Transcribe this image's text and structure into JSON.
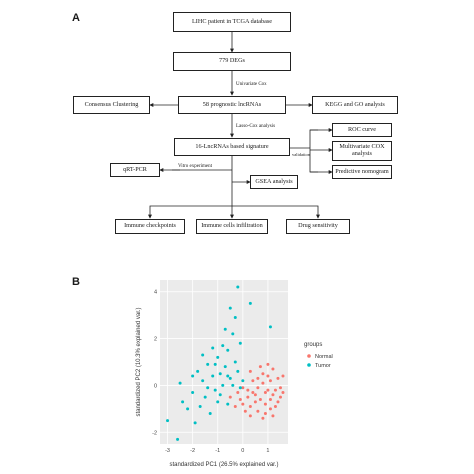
{
  "panels": {
    "a": "A",
    "b": "B"
  },
  "flowchart": {
    "boxes": {
      "lihc": "LIHC patient in TCGA database",
      "degs": "779 DEGs",
      "prognostic": "58 prognostic lncRNAs",
      "consensus": "Consensus Clustering",
      "kegg": "KEGG and GO analysis",
      "signature": "16-LncRNAs based signature",
      "roc": "ROC curve",
      "multivariate": "Multivariate COX analysis",
      "nomogram": "Predictive nomogram",
      "qrtpcr": "qRT-PCR",
      "gsea": "GSEA analysis",
      "immune_checkpoints": "Immune checkpoints",
      "immune_infiltration": "Immune cells infiltration",
      "drug": "Drug sensitivity"
    },
    "edge_labels": {
      "univariate": "Univariate Cox",
      "lasso": "Lasso-Cox analysis",
      "validation": "validation",
      "vitro": "Vitro experiment"
    }
  },
  "chart_data": {
    "type": "scatter",
    "xlabel": "standardized PC1 (26.5% explained var.)",
    "ylabel": "standardized PC2 (10.3% explained var.)",
    "xlim": [
      -3.3,
      1.8
    ],
    "ylim": [
      -2.5,
      4.5
    ],
    "x_ticks": [
      -3,
      -2,
      -1,
      0,
      1
    ],
    "y_ticks": [
      -2,
      0,
      2,
      4
    ],
    "grid": true,
    "legend_title": "groups",
    "legend_position": "right",
    "series": [
      {
        "name": "Normal",
        "color": "#f8766d",
        "points": [
          [
            0.2,
            -0.5
          ],
          [
            0.4,
            -0.3
          ],
          [
            0.6,
            -0.1
          ],
          [
            0.8,
            0.1
          ],
          [
            1.0,
            -0.2
          ],
          [
            1.2,
            -0.4
          ],
          [
            0.5,
            -0.7
          ],
          [
            0.3,
            -0.9
          ],
          [
            0.7,
            -0.6
          ],
          [
            0.9,
            -0.8
          ],
          [
            1.1,
            -0.6
          ],
          [
            1.3,
            -0.2
          ],
          [
            1.4,
            0.3
          ],
          [
            1.5,
            -0.5
          ],
          [
            0.6,
            0.3
          ],
          [
            0.8,
            0.5
          ],
          [
            1.0,
            0.4
          ],
          [
            1.2,
            0.7
          ],
          [
            0.4,
            0.2
          ],
          [
            0.2,
            -0.2
          ],
          [
            -0.1,
            -0.6
          ],
          [
            0.0,
            -0.8
          ],
          [
            0.1,
            -1.1
          ],
          [
            0.3,
            -1.3
          ],
          [
            0.6,
            -1.1
          ],
          [
            0.9,
            -1.2
          ],
          [
            1.1,
            -1.0
          ],
          [
            1.3,
            -0.9
          ],
          [
            1.5,
            -0.1
          ],
          [
            1.6,
            0.4
          ],
          [
            0.7,
            0.8
          ],
          [
            0.5,
            -0.4
          ],
          [
            0.9,
            -0.3
          ],
          [
            1.1,
            0.2
          ],
          [
            0.3,
            0.6
          ],
          [
            -0.2,
            -0.3
          ],
          [
            -0.3,
            -0.9
          ],
          [
            1.4,
            -0.7
          ],
          [
            1.2,
            -1.3
          ],
          [
            0.8,
            -1.4
          ],
          [
            -0.5,
            -0.5
          ],
          [
            0.0,
            -0.1
          ],
          [
            1.6,
            -0.3
          ],
          [
            1.0,
            0.9
          ]
        ]
      },
      {
        "name": "Tumor",
        "color": "#00bfc4",
        "points": [
          [
            -3.0,
            -1.5
          ],
          [
            -2.6,
            -2.3
          ],
          [
            -2.4,
            -0.7
          ],
          [
            -2.2,
            -1.0
          ],
          [
            -2.0,
            -0.3
          ],
          [
            -1.9,
            -1.6
          ],
          [
            -1.8,
            0.6
          ],
          [
            -1.7,
            -0.9
          ],
          [
            -1.6,
            0.2
          ],
          [
            -1.5,
            -0.5
          ],
          [
            -1.4,
            0.9
          ],
          [
            -1.3,
            -1.2
          ],
          [
            -1.2,
            0.4
          ],
          [
            -1.1,
            -0.2
          ],
          [
            -1.0,
            1.2
          ],
          [
            -0.9,
            0.5
          ],
          [
            -0.8,
            0.0
          ],
          [
            -0.7,
            0.8
          ],
          [
            -0.6,
            1.5
          ],
          [
            -0.5,
            0.3
          ],
          [
            -0.4,
            2.2
          ],
          [
            -0.3,
            1.0
          ],
          [
            -0.2,
            0.6
          ],
          [
            -0.1,
            1.8
          ],
          [
            0.0,
            0.2
          ],
          [
            -0.6,
            -0.8
          ],
          [
            -1.0,
            -0.7
          ],
          [
            -1.4,
            -0.1
          ],
          [
            -0.8,
            1.7
          ],
          [
            -0.3,
            2.9
          ],
          [
            -0.5,
            3.3
          ],
          [
            -0.2,
            4.2
          ],
          [
            0.3,
            3.5
          ],
          [
            -0.7,
            2.4
          ],
          [
            -1.6,
            1.3
          ],
          [
            -2.0,
            0.4
          ],
          [
            -0.9,
            -0.4
          ],
          [
            -0.4,
            0.0
          ],
          [
            -1.2,
            1.6
          ],
          [
            -0.1,
            -0.1
          ],
          [
            1.1,
            2.5
          ],
          [
            -2.5,
            0.1
          ],
          [
            -0.6,
            0.4
          ],
          [
            -1.1,
            0.9
          ]
        ]
      }
    ]
  }
}
